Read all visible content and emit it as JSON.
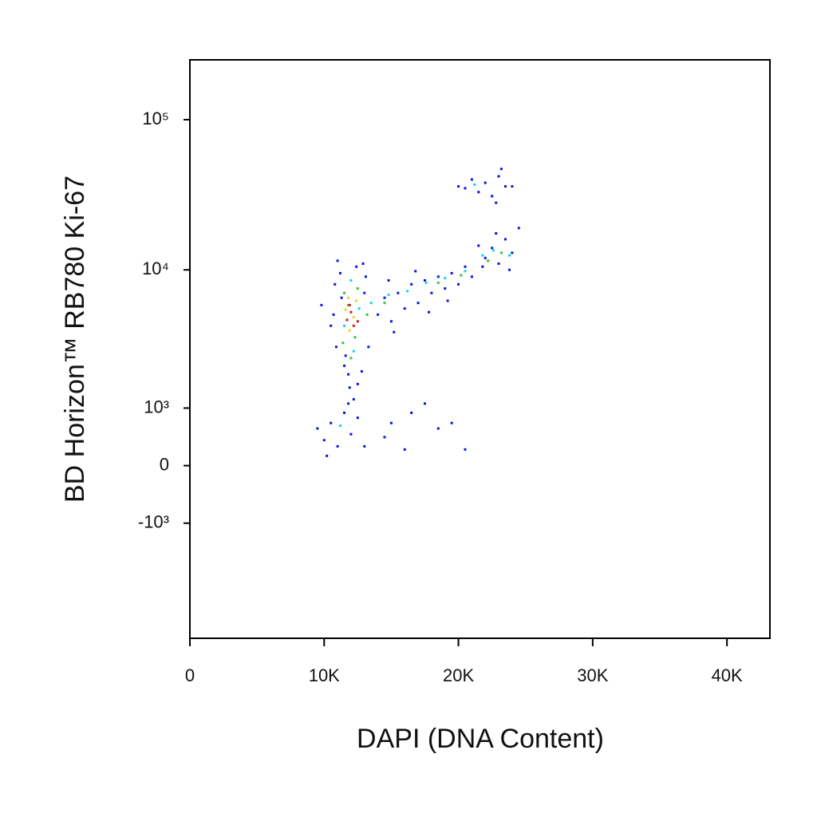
{
  "chart_data": {
    "type": "scatter",
    "x_label": "DAPI (DNA Content)",
    "y_label": "BD Horizon™ RB780 Ki-67",
    "xlim": [
      0,
      43200
    ],
    "ylim": [
      -7000,
      250000
    ],
    "yscale": "biexponential",
    "xticks": [
      0,
      {
        "value": 10000,
        "label": "10K"
      },
      {
        "value": 20000,
        "label": "20K"
      },
      {
        "value": 30000,
        "label": "30K"
      },
      {
        "value": 40000,
        "label": "40K"
      }
    ],
    "yticks": [
      {
        "value": -1000,
        "label": "-10³"
      },
      0,
      {
        "value": 1000,
        "label": "10³"
      },
      {
        "value": 10000,
        "label": "10⁴"
      },
      {
        "value": 100000,
        "label": "10⁵"
      }
    ],
    "series": [
      {
        "color": "#0a14e0",
        "x": [
          10800,
          11200,
          10900,
          11500,
          12800,
          12500,
          11900,
          13000,
          12900,
          11000,
          11600,
          10700,
          13300,
          12200,
          11300,
          9800,
          10500,
          13100,
          12400,
          11800,
          14000,
          14500,
          15000,
          15500,
          16000,
          16500,
          17000,
          17500,
          18000,
          18500,
          19000,
          19500,
          20000,
          20500,
          21000,
          15200,
          17800,
          19200,
          16800,
          14800,
          22000,
          22500,
          23000,
          23500,
          24000,
          21500,
          22800,
          23800,
          24500,
          21800,
          20000,
          21000,
          21500,
          22000,
          22500,
          23000,
          23500,
          23200,
          20500,
          22800,
          24000,
          9500,
          10000,
          10500,
          11000,
          11500,
          12000,
          12500,
          13000,
          14500,
          15000,
          16000,
          16500,
          17500,
          18500,
          19500,
          20500,
          10200,
          11800
        ],
        "values": [
          8000,
          9500,
          3000,
          2200,
          2000,
          1600,
          1500,
          7000,
          11000,
          11500,
          2600,
          5000,
          3000,
          1200,
          6500,
          5800,
          4200,
          9000,
          10500,
          1900,
          5000,
          6500,
          4500,
          7000,
          5500,
          8000,
          6000,
          8500,
          7000,
          9000,
          7500,
          9500,
          8000,
          10500,
          9000,
          3800,
          5200,
          6200,
          9800,
          8500,
          12000,
          14000,
          11000,
          16000,
          13000,
          14500,
          17500,
          10000,
          19000,
          10500,
          36000,
          40000,
          33000,
          38000,
          31000,
          42000,
          36000,
          47000,
          35000,
          28000,
          36000,
          600,
          400,
          700,
          300,
          900,
          500,
          800,
          300,
          450,
          700,
          250,
          900,
          1100,
          600,
          700,
          250,
          150,
          1100
        ]
      },
      {
        "color": "#10d8e8",
        "x": [
          12000,
          11500,
          12600,
          13500,
          14800,
          16200,
          17600,
          19000,
          20500,
          21800,
          22600,
          23800,
          21200,
          12200,
          11200
        ],
        "values": [
          8500,
          4200,
          5500,
          6000,
          6800,
          7200,
          8200,
          8800,
          9800,
          12500,
          13500,
          12500,
          37000,
          2800,
          650
        ]
      },
      {
        "color": "#30c830",
        "x": [
          11500,
          12300,
          11800,
          12500,
          11400,
          13200,
          14500,
          18500,
          22200,
          23200,
          12000,
          20200
        ],
        "values": [
          7000,
          3500,
          5800,
          7500,
          3200,
          5000,
          6000,
          8200,
          11500,
          13000,
          2500,
          9200
        ]
      },
      {
        "color": "#e0d820",
        "x": [
          11800,
          12200,
          11600,
          12400,
          11900
        ],
        "values": [
          6500,
          4800,
          5400,
          6200,
          3900
        ]
      },
      {
        "color": "#e01818",
        "x": [
          12000,
          12200,
          11700,
          12500,
          11900
        ],
        "values": [
          5200,
          4200,
          4600,
          4500,
          5800
        ]
      }
    ]
  }
}
